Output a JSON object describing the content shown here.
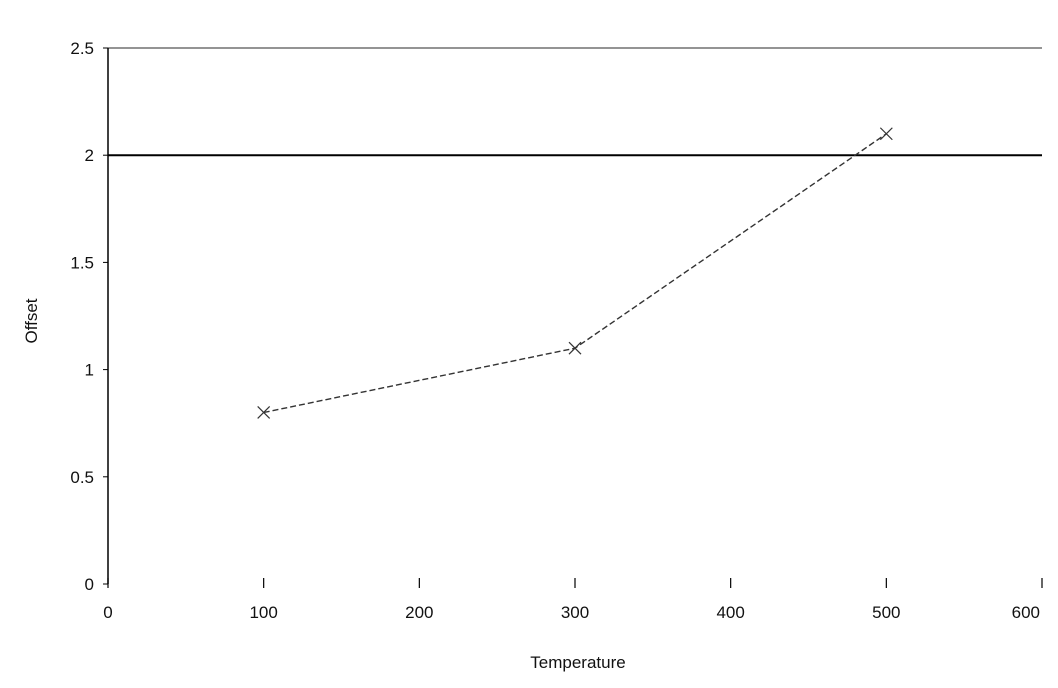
{
  "chart_data": {
    "type": "line",
    "title": "",
    "xlabel": "Temperature",
    "ylabel": "Offset",
    "xlim": [
      0,
      600
    ],
    "ylim": [
      0,
      2.5
    ],
    "x_ticks": [
      0,
      100,
      200,
      300,
      400,
      500,
      600
    ],
    "y_ticks": [
      0,
      0.5,
      1,
      1.5,
      2,
      2.5
    ],
    "x_tick_labels": [
      "0",
      "100",
      "200",
      "300",
      "400",
      "500",
      "600"
    ],
    "y_tick_labels": [
      "0",
      "0.5",
      "1",
      "1.5",
      "2",
      "2.5"
    ],
    "grid": "horizontal",
    "legend": "none",
    "reference_line": {
      "y": 2
    },
    "series": [
      {
        "x": [
          100,
          300,
          500
        ],
        "values": [
          0.8,
          1.1,
          2.1
        ],
        "line_style": "dashed",
        "color": "#333333",
        "marker": "x"
      }
    ]
  }
}
